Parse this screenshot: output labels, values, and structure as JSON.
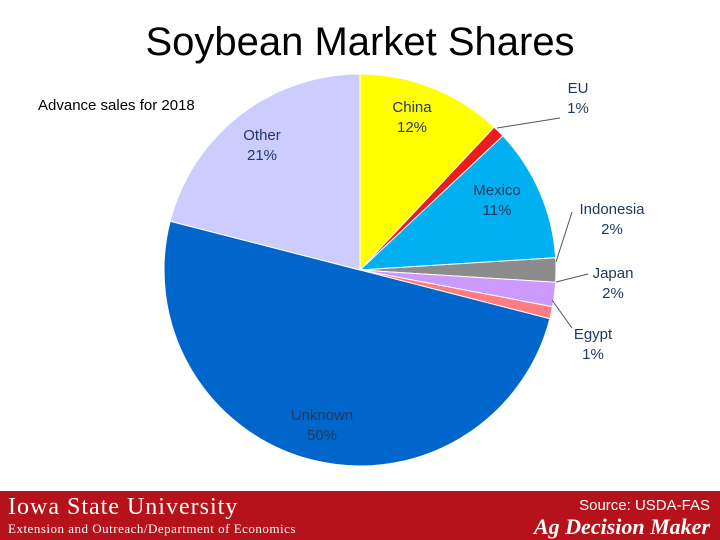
{
  "slide": {
    "title": "Soybean Market Shares",
    "subtitle": "Advance sales for 2018"
  },
  "footer": {
    "university": "Iowa State University",
    "department": "Extension and Outreach/Department of Economics",
    "source": "Source: USDA-FAS",
    "brand": "Ag Decision Maker",
    "color": "#b5121b"
  },
  "chart_data": {
    "type": "pie",
    "title": "Soybean Market Shares",
    "subtitle": "Advance sales for 2018",
    "unit": "%",
    "slices": [
      {
        "label": "China",
        "value": 12,
        "display": "12%",
        "color": "#ffff00",
        "text_color": "#1f3864"
      },
      {
        "label": "EU",
        "value": 1,
        "display": "1%",
        "color": "#ee1c1c",
        "text_color": "#1f3864"
      },
      {
        "label": "Mexico",
        "value": 11,
        "display": "11%",
        "color": "#00b0f0",
        "text_color": "#1f3864"
      },
      {
        "label": "Indonesia",
        "value": 2,
        "display": "2%",
        "color": "#8c8c8c",
        "text_color": "#1f3864"
      },
      {
        "label": "Japan",
        "value": 2,
        "display": "2%",
        "color": "#cc99ff",
        "text_color": "#1f3864"
      },
      {
        "label": "Egypt",
        "value": 1,
        "display": "1%",
        "color": "#ff7c80",
        "text_color": "#1f3864"
      },
      {
        "label": "Unknown",
        "value": 50,
        "display": "50%",
        "color": "#0066cc",
        "text_color": "#1f3864"
      },
      {
        "label": "Other",
        "value": 21,
        "display": "21%",
        "color": "#ccccff",
        "text_color": "#1f3864"
      }
    ]
  }
}
